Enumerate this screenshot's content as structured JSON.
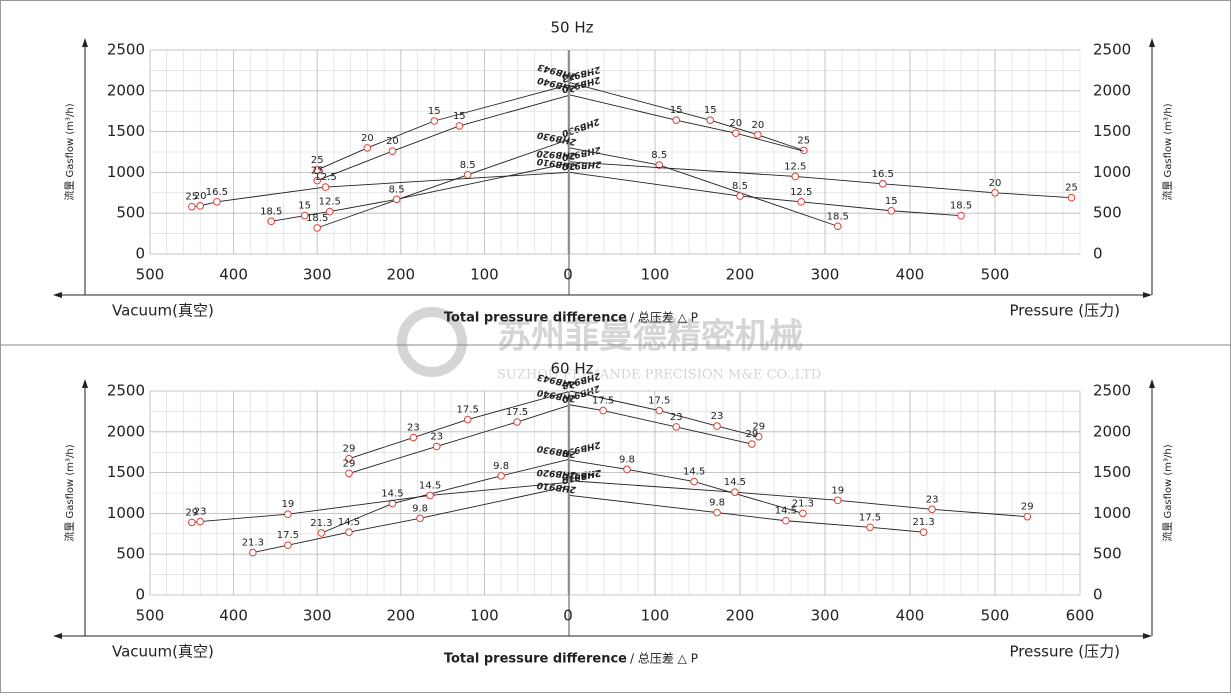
{
  "watermark": {
    "company_cn": "苏州菲曼德精密机械",
    "company_en": "SUZHOU FEIMANDE PRECISION M&E CO.,LTD"
  },
  "chart_data": [
    {
      "type": "line",
      "title": "50 Hz",
      "ylabel": "流量 Gasflow (m³/h)",
      "ylim": [
        0,
        2500
      ],
      "yticks": [
        0,
        500,
        1000,
        1500,
        2000,
        2500
      ],
      "xlabel": "Total pressure difference",
      "xlabel_cn": "/ 总压差 △ P",
      "grid": true,
      "line_color": "#222222",
      "marker_color": "#e0403a",
      "vacuum": {
        "label": "Vacuum(真空)",
        "xlim": [
          500,
          0
        ],
        "xticks": [
          500,
          400,
          300,
          200,
          100,
          0
        ],
        "series": [
          {
            "name": "2HB943",
            "x": [
              300,
              240,
              160,
              0
            ],
            "values": [
              1030,
              1300,
              1630,
              2070
            ],
            "labels": [
              "25",
              "20",
              "15",
              null
            ]
          },
          {
            "name": "2HB940",
            "x": [
              300,
              210,
              130,
              0
            ],
            "values": [
              900,
              1260,
              1570,
              1940
            ],
            "labels": [
              "25",
              "20",
              "15",
              null
            ]
          },
          {
            "name": "2HB930",
            "x": [
              300,
              120,
              0
            ],
            "values": [
              320,
              970,
              1400
            ],
            "labels": [
              "18.5",
              "8.5",
              null
            ]
          },
          {
            "name": "2HB920",
            "x": [
              355,
              315,
              285,
              205,
              0
            ],
            "values": [
              400,
              470,
              520,
              670,
              1110
            ],
            "labels": [
              "18.5",
              "15",
              "12.5",
              "8.5",
              null
            ]
          },
          {
            "name": "2HB910",
            "x": [
              450,
              440,
              420,
              290,
              0
            ],
            "values": [
              580,
              590,
              640,
              820,
              1000
            ],
            "labels": [
              "25",
              "20",
              "16.5",
              "12.5",
              null
            ]
          }
        ]
      },
      "pressure": {
        "label": "Pressure (压力)",
        "xlim": [
          0,
          600
        ],
        "xticks": [
          100,
          200,
          300,
          400,
          500
        ],
        "series": [
          {
            "name": "2HB943",
            "x": [
              0,
              165,
              221,
              275
            ],
            "values": [
              2100,
              1640,
              1460,
              1270
            ],
            "labels": [
              null,
              "15",
              "20",
              "25"
            ]
          },
          {
            "name": "2HB940",
            "x": [
              0,
              125,
              195,
              275
            ],
            "values": [
              1950,
              1640,
              1480,
              1260
            ],
            "labels": [
              null,
              "15",
              "20",
              null
            ]
          },
          {
            "name": "2HB930",
            "x": [
              0,
              105,
              315
            ],
            "values": [
              1300,
              1090,
              340
            ],
            "labels": [
              null,
              "8.5",
              "18.5"
            ]
          },
          {
            "name": "2HB920",
            "x": [
              0,
              265,
              368,
              500,
              590
            ],
            "values": [
              1130,
              950,
              860,
              750,
              690
            ],
            "labels": [
              null,
              "12.5",
              "16.5",
              "20",
              "25"
            ]
          },
          {
            "name": "2HB910",
            "x": [
              0,
              200,
              272,
              378,
              460
            ],
            "values": [
              1000,
              710,
              640,
              530,
              470
            ],
            "labels": [
              null,
              "8.5",
              "12.5",
              "15",
              "18.5"
            ]
          }
        ]
      }
    },
    {
      "type": "line",
      "title": "60 Hz",
      "ylabel": "流量 Gasflow (m³/h)",
      "ylim": [
        0,
        2500
      ],
      "yticks": [
        0,
        500,
        1000,
        1500,
        2000,
        2500
      ],
      "xlabel": "Total pressure difference",
      "xlabel_cn": "/ 总压差 △ P",
      "grid": true,
      "line_color": "#222222",
      "marker_color": "#e0403a",
      "vacuum": {
        "label": "Vacuum(真空)",
        "xlim": [
          500,
          0
        ],
        "xticks": [
          500,
          400,
          300,
          200,
          100,
          0
        ],
        "series": [
          {
            "name": "2HB943",
            "x": [
              262,
              185,
              120,
              0
            ],
            "values": [
              1670,
              1930,
              2150,
              2490
            ],
            "labels": [
              "29",
              "23",
              "17.5",
              null
            ]
          },
          {
            "name": "2HB940",
            "x": [
              262,
              157,
              61,
              0
            ],
            "values": [
              1490,
              1820,
              2120,
              2320
            ],
            "labels": [
              "29",
              "23",
              "17.5",
              null
            ]
          },
          {
            "name": "2HB930",
            "x": [
              295,
              210,
              80,
              0
            ],
            "values": [
              760,
              1120,
              1460,
              1660
            ],
            "labels": [
              "21.3",
              "14.5",
              "9.8",
              null
            ]
          },
          {
            "name": "2HB920",
            "x": [
              450,
              440,
              335,
              165,
              0
            ],
            "values": [
              890,
              900,
              990,
              1220,
              1380
            ],
            "labels": [
              "29",
              "23",
              "19",
              "14.5",
              null
            ]
          },
          {
            "name": "2HB910",
            "x": [
              377,
              335,
              262,
              177,
              0
            ],
            "values": [
              520,
              610,
              770,
              940,
              1330
            ],
            "labels": [
              "21.3",
              "17.5",
              "14.5",
              "9.8",
              null
            ]
          }
        ]
      },
      "pressure": {
        "label": "Pressure (压力)",
        "xlim": [
          0,
          600
        ],
        "xticks": [
          100,
          200,
          300,
          400,
          500,
          600
        ],
        "series": [
          {
            "name": "2HB943",
            "x": [
              0,
              105,
              173,
              222
            ],
            "values": [
              2500,
              2260,
              2070,
              1940
            ],
            "labels": [
              null,
              "17.5",
              "23",
              "29"
            ]
          },
          {
            "name": "2HB940",
            "x": [
              0,
              39,
              125,
              214
            ],
            "values": [
              2330,
              2260,
              2060,
              1850
            ],
            "labels": [
              null,
              "17.5",
              "23",
              "29"
            ]
          },
          {
            "name": "2HB930",
            "x": [
              0,
              67,
              146,
              274
            ],
            "values": [
              1650,
              1540,
              1390,
              1000
            ],
            "labels": [
              null,
              "9.8",
              "14.5",
              "21.3"
            ]
          },
          {
            "name": "2HB920",
            "x": [
              0,
              194,
              315,
              426,
              538
            ],
            "values": [
              1400,
              1260,
              1160,
              1050,
              960
            ],
            "labels": [
              null,
              "14.5",
              "19",
              "23",
              "29"
            ]
          },
          {
            "name": "2HB910",
            "x": [
              0,
              173,
              254,
              353,
              416
            ],
            "values": [
              1220,
              1010,
              910,
              830,
              770
            ],
            "labels": [
              null,
              "9.8",
              "14.5",
              "17.5",
              "21.3"
            ]
          }
        ]
      }
    }
  ]
}
